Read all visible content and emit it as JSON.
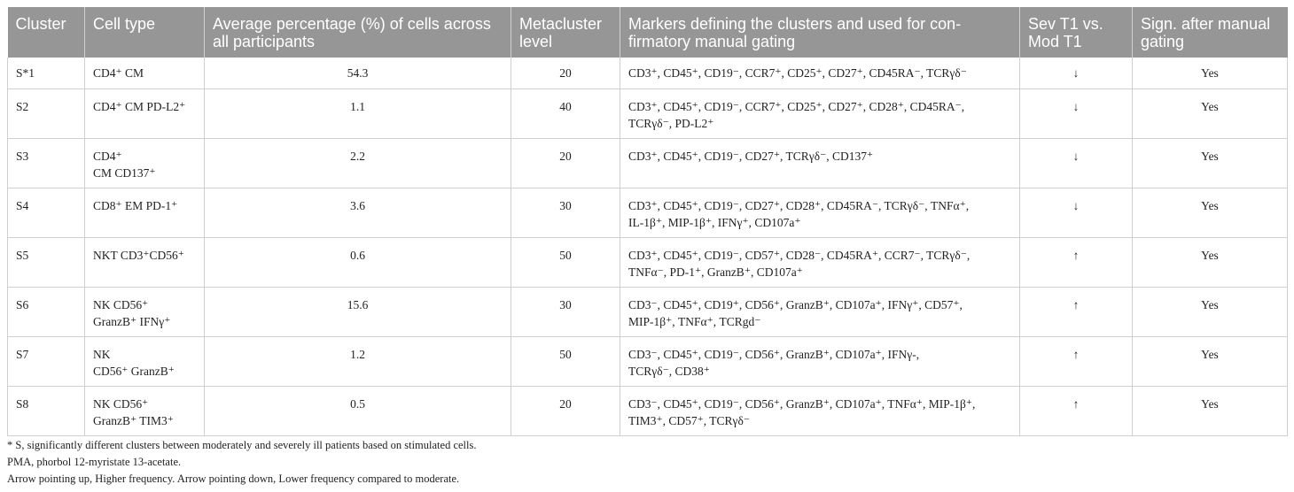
{
  "headers": [
    "Cluster",
    "Cell type",
    "Average percentage (%) of cells across all participants",
    "Metacluster level",
    "Markers defining the clusters and used for con-firmatory manual gating",
    "Sev T1 vs. Mod T1",
    "Sign. after manual gating"
  ],
  "rows": [
    {
      "cluster": "S*1",
      "cell_type_lines": [
        "CD4⁺ CM"
      ],
      "avg": "54.3",
      "meta": "20",
      "marker_lines": [
        "CD3⁺, CD45⁺, CD19⁻, CCR7⁺, CD25⁺, CD27⁺, CD45RA⁻, TCRγδ⁻"
      ],
      "arrow": "↓",
      "sign": "Yes"
    },
    {
      "cluster": "S2",
      "cell_type_lines": [
        "CD4⁺ CM PD-L2⁺"
      ],
      "avg": "1.1",
      "meta": "40",
      "marker_lines": [
        "CD3⁺, CD45⁺, CD19⁻, CCR7⁺, CD25⁺, CD27⁺, CD28⁺, CD45RA⁻,",
        "TCRγδ⁻, PD-L2⁺"
      ],
      "arrow": "↓",
      "sign": "Yes"
    },
    {
      "cluster": "S3",
      "cell_type_lines": [
        "CD4⁺",
        "CM CD137⁺"
      ],
      "avg": "2.2",
      "meta": "20",
      "marker_lines": [
        "CD3⁺, CD45⁺, CD19⁻, CD27⁺, TCRγδ⁻, CD137⁺"
      ],
      "arrow": "↓",
      "sign": "Yes"
    },
    {
      "cluster": "S4",
      "cell_type_lines": [
        "CD8⁺ EM PD-1⁺"
      ],
      "avg": "3.6",
      "meta": "30",
      "marker_lines": [
        "CD3⁺, CD45⁺, CD19⁻, CD27⁺, CD28⁺, CD45RA⁻, TCRγδ⁻, TNFα⁺,",
        "IL-1β⁺, MIP-1β⁺, IFNγ⁺, CD107a⁺"
      ],
      "arrow": "↓",
      "sign": "Yes"
    },
    {
      "cluster": "S5",
      "cell_type_lines": [
        "NKT CD3⁺CD56⁺"
      ],
      "avg": "0.6",
      "meta": "50",
      "marker_lines": [
        "CD3⁺, CD45⁺, CD19⁻, CD57⁺, CD28⁻, CD45RA⁺, CCR7⁻, TCRγδ⁻,",
        "TNFα⁻, PD-1⁺, GranzB⁺, CD107a⁺"
      ],
      "arrow": "↑",
      "sign": "Yes"
    },
    {
      "cluster": "S6",
      "cell_type_lines": [
        "NK CD56⁺",
        "GranzB⁺ IFNγ⁺"
      ],
      "avg": "15.6",
      "meta": "30",
      "marker_lines": [
        "CD3⁻, CD45⁺, CD19⁺, CD56⁺, GranzB⁺, CD107a⁺, IFNγ⁺, CD57⁺,",
        "MIP-1β⁺, TNFα⁺, TCRgd⁻"
      ],
      "arrow": "↑",
      "sign": "Yes"
    },
    {
      "cluster": "S7",
      "cell_type_lines": [
        "NK",
        "CD56⁺ GranzB⁺"
      ],
      "avg": "1.2",
      "meta": "50",
      "marker_lines": [
        "CD3⁻, CD45⁺, CD19⁻, CD56⁺, GranzB⁺, CD107a⁺, IFNγ-,",
        "TCRγδ⁻, CD38⁺"
      ],
      "arrow": "↑",
      "sign": "Yes"
    },
    {
      "cluster": "S8",
      "cell_type_lines": [
        "NK CD56⁺",
        "GranzB⁺ TIM3⁺"
      ],
      "avg": "0.5",
      "meta": "20",
      "marker_lines": [
        "CD3⁻, CD45⁺, CD19⁻, CD56⁺, GranzB⁺, CD107a⁺, TNFα⁺, MIP-1β⁺,",
        "TIM3⁺, CD57⁺, TCRγδ⁻"
      ],
      "arrow": "↑",
      "sign": "Yes"
    }
  ],
  "footnotes": [
    "* S, significantly different clusters between moderately and severely ill patients based on stimulated cells.",
    "PMA, phorbol 12-myristate 13-acetate.",
    "Arrow pointing up, Higher frequency. Arrow pointing down, Lower frequency compared to moderate."
  ]
}
